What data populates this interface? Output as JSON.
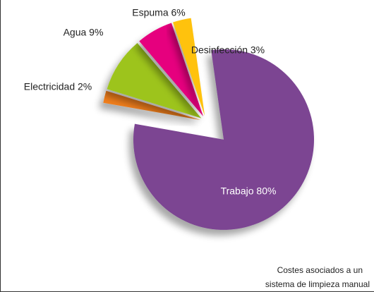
{
  "chart_data": {
    "type": "pie",
    "values": [
      80,
      2,
      9,
      6,
      3
    ],
    "value_labels": [
      "Trabajo 80%",
      "Electricidad 2%",
      "Agua 9%",
      "Espuma 6%",
      "Desinfección 3%"
    ],
    "colors": [
      "#7b4592",
      "#f07e1a",
      "#9dc41a",
      "#e6007e",
      "#ffc20e"
    ],
    "note": [
      "Costes asociados a un",
      "sistema de limpieza manual"
    ]
  }
}
